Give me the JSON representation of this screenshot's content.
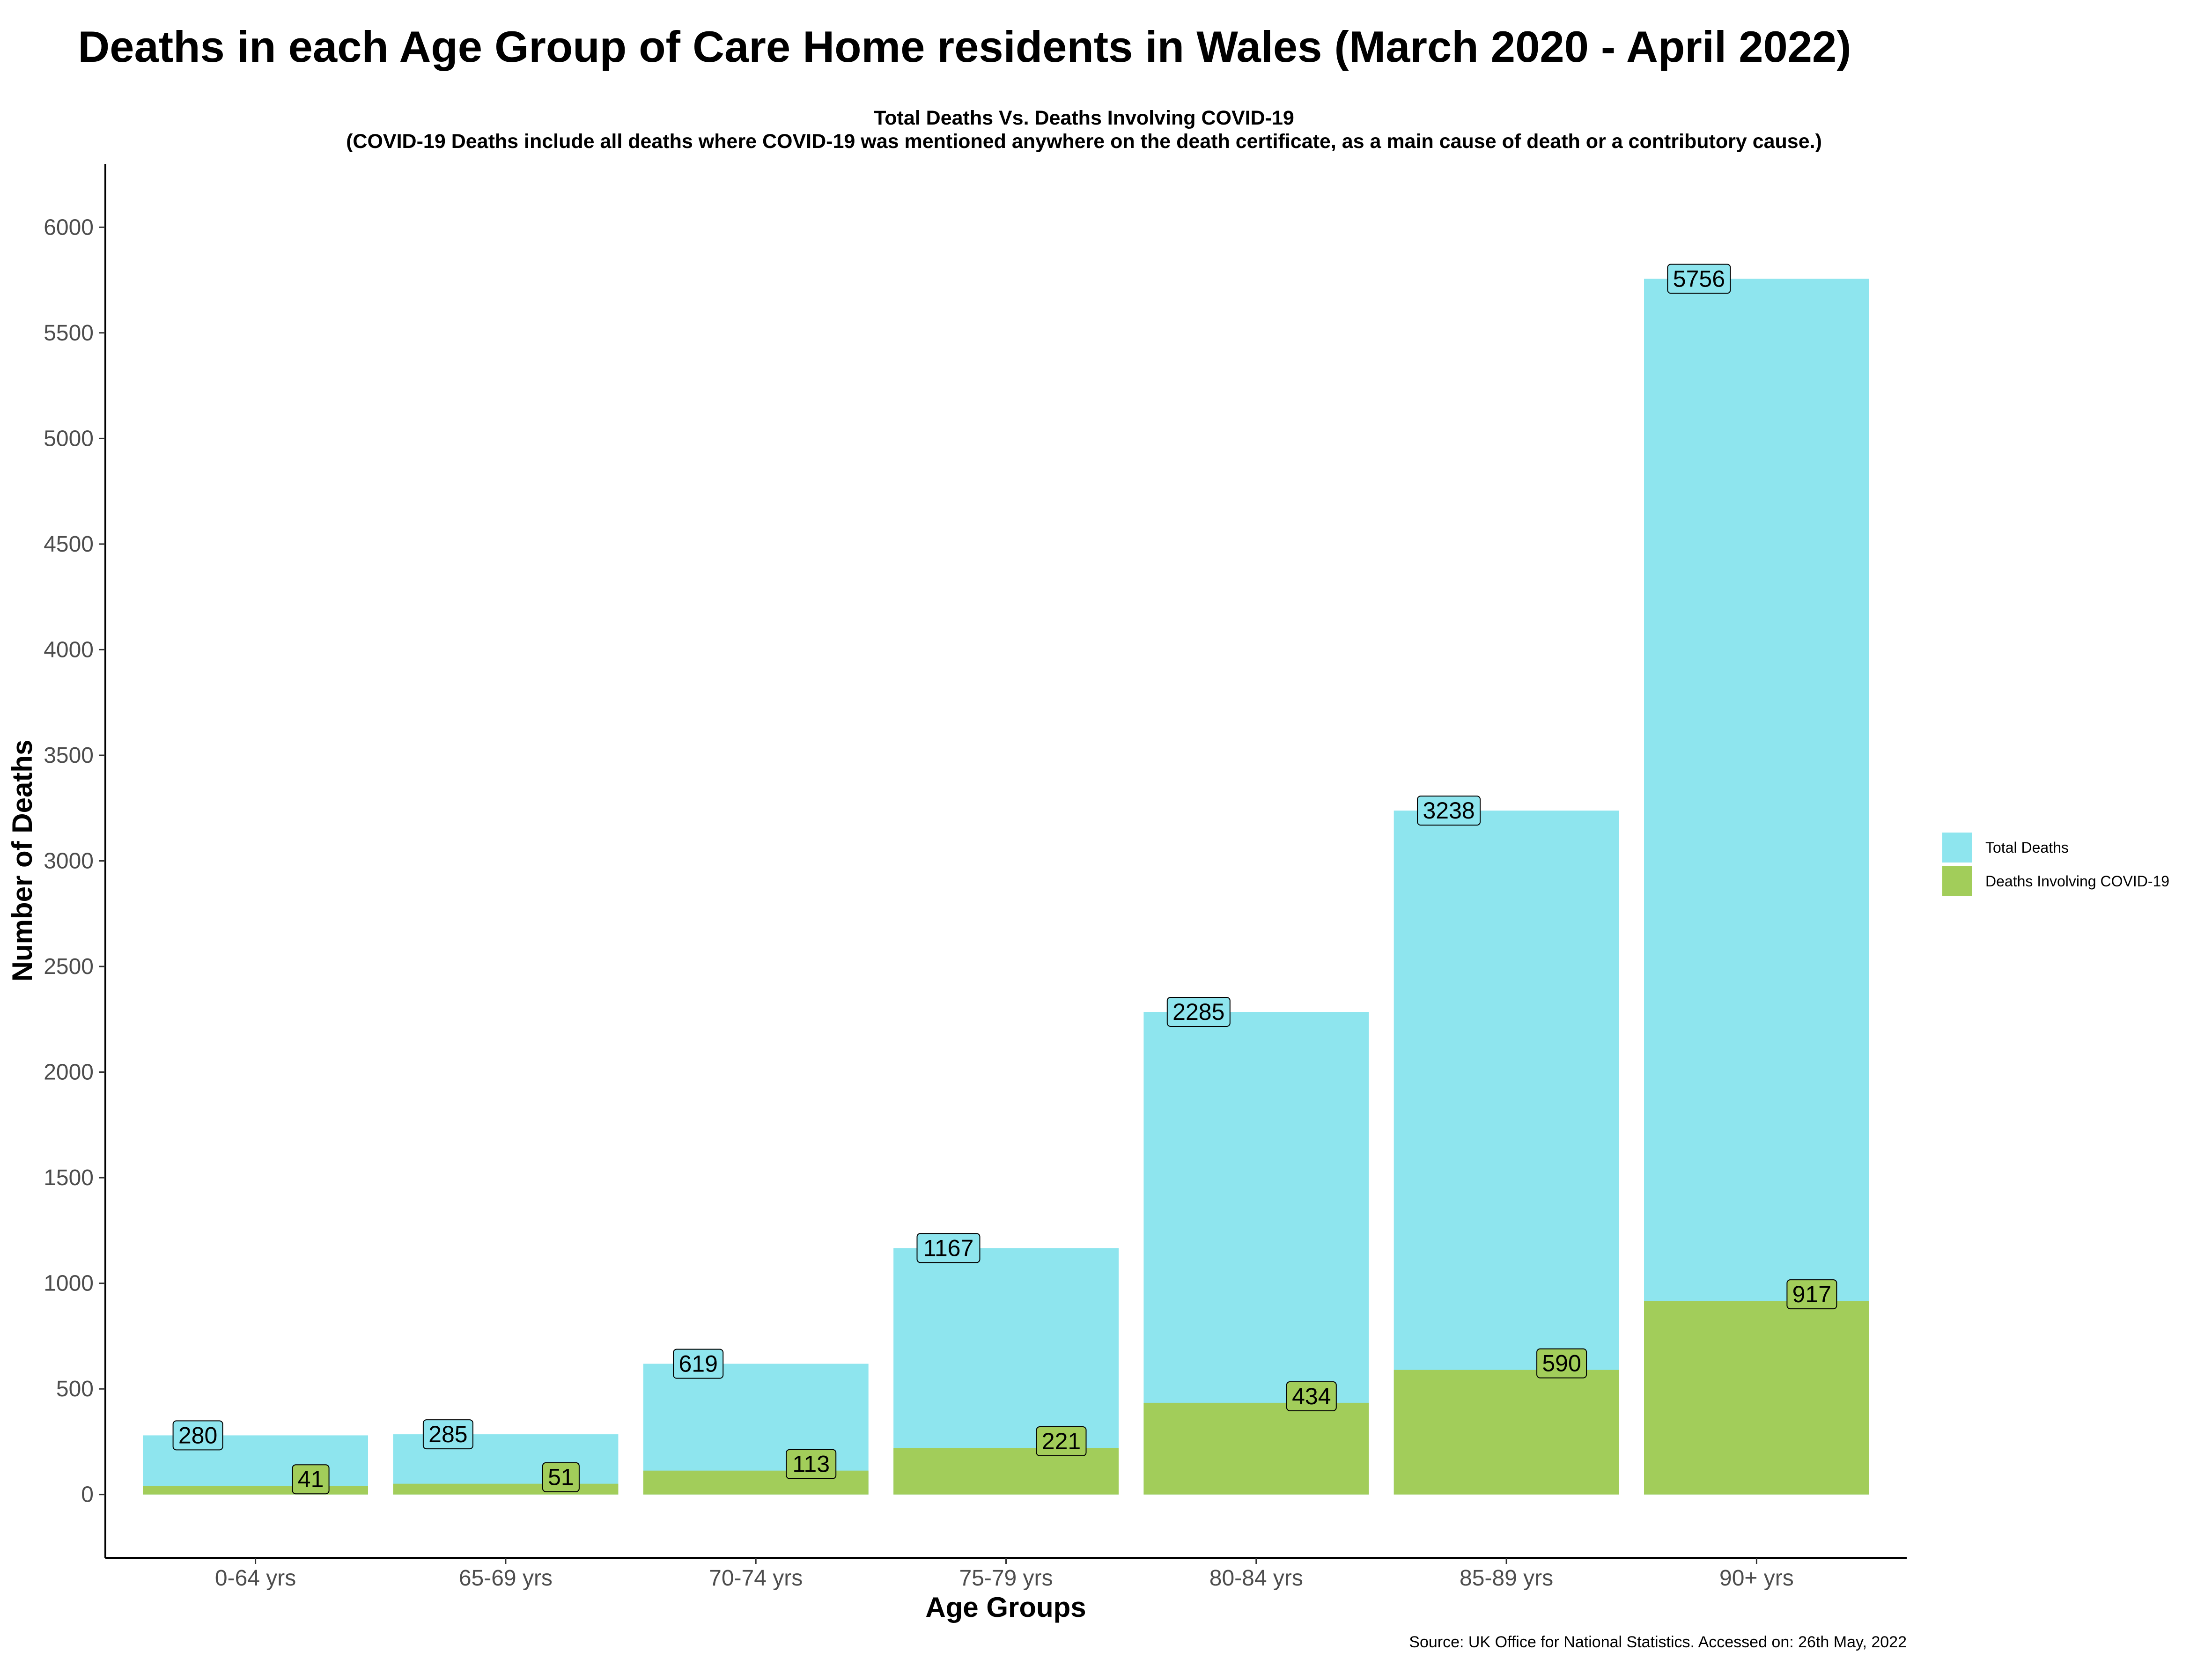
{
  "chart_data": {
    "type": "bar",
    "title": "Deaths in each Age Group of Care Home residents in Wales (March 2020 - April 2022)",
    "subtitle_line1": "Total Deaths Vs. Deaths Involving COVID-19",
    "subtitle_line2": "(COVID-19 Deaths include all deaths where COVID-19 was mentioned anywhere on the death certificate, as a main cause of death or a contributory cause.)",
    "xlabel": "Age Groups",
    "ylabel": "Number of Deaths",
    "caption": "Source: UK Office for National Statistics. Accessed on: 26th May, 2022",
    "categories": [
      "0-64 yrs",
      "65-69 yrs",
      "70-74 yrs",
      "75-79 yrs",
      "80-84 yrs",
      "85-89 yrs",
      "90+ yrs"
    ],
    "series": [
      {
        "name": "Total Deaths",
        "color": "#8EE5EE",
        "values": [
          280,
          285,
          619,
          1167,
          2285,
          3238,
          5756
        ]
      },
      {
        "name": "Deaths Involving COVID-19",
        "color": "#A2CD5A",
        "values": [
          41,
          51,
          113,
          221,
          434,
          590,
          917
        ]
      }
    ],
    "yticks": [
      0,
      500,
      1000,
      1500,
      2000,
      2500,
      3000,
      3500,
      4000,
      4500,
      5000,
      5500,
      6000
    ],
    "ylim": [
      -300,
      6300
    ],
    "grid": false,
    "legend_position": "right"
  }
}
